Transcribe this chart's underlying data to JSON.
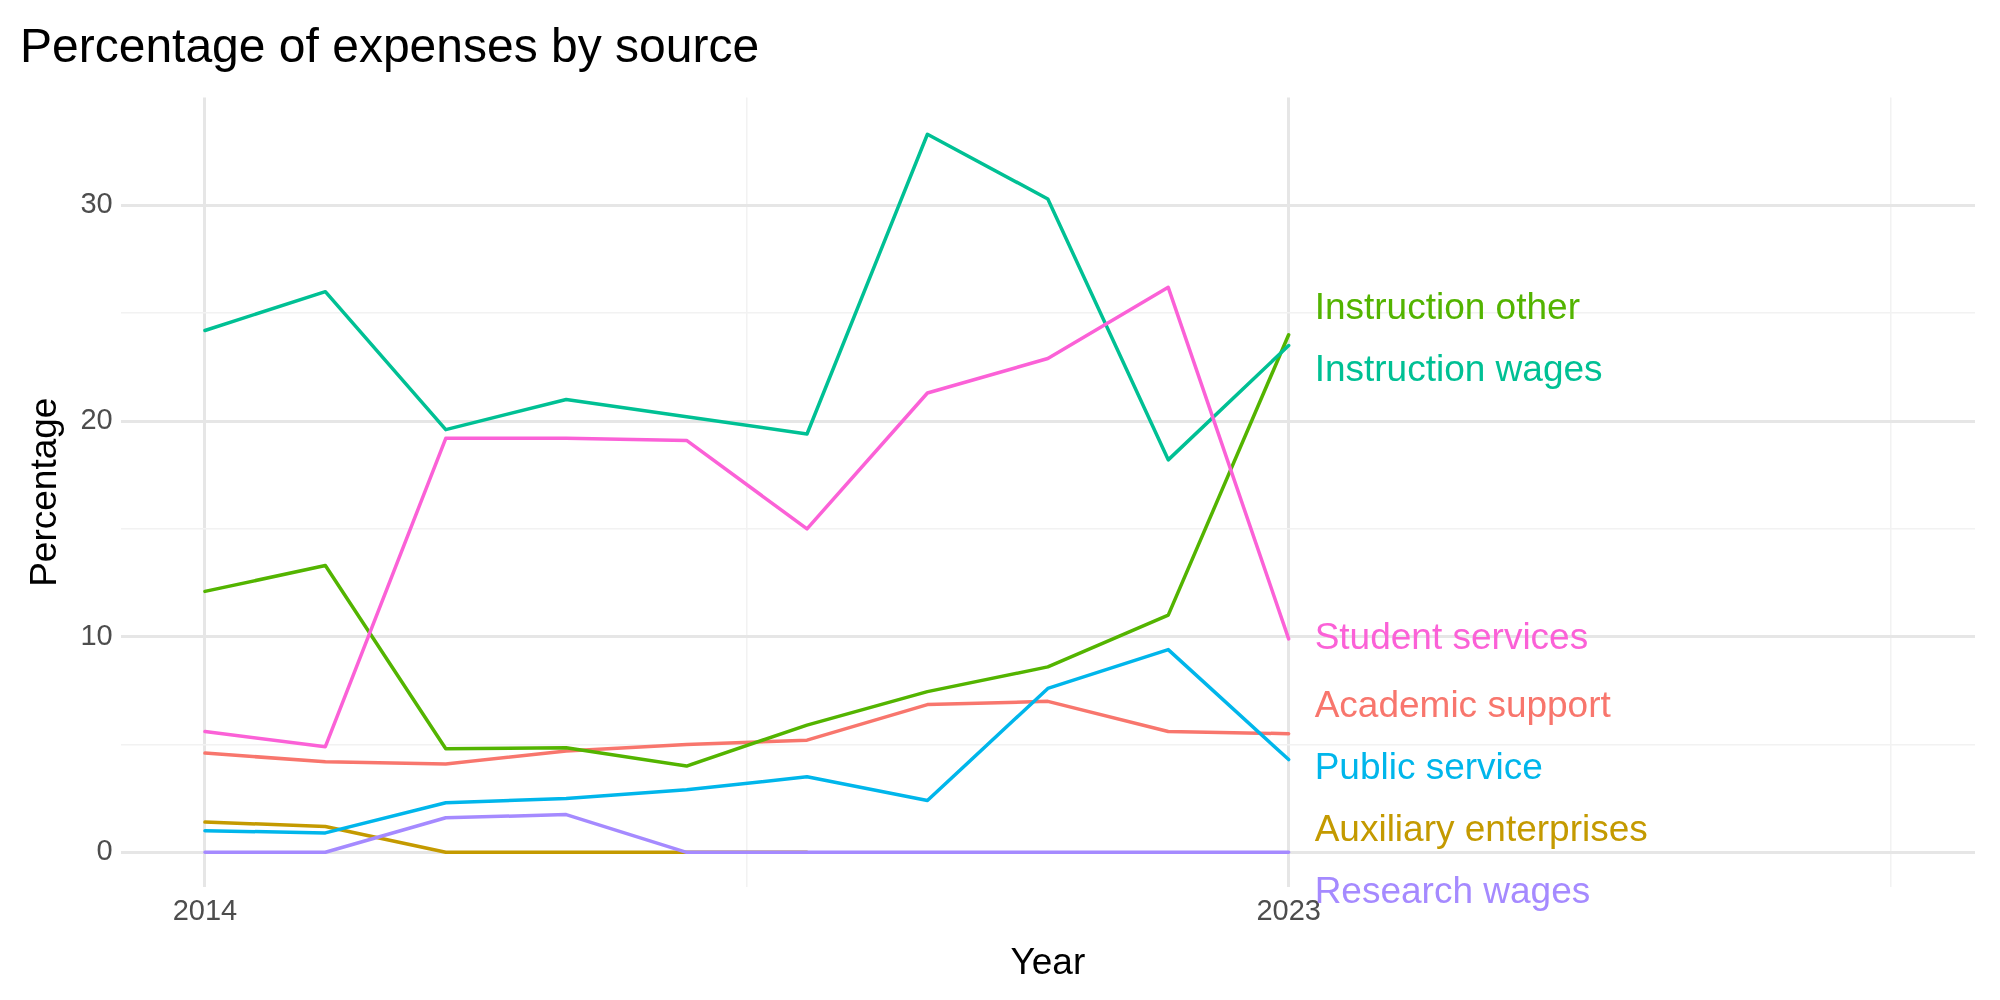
{
  "chart_data": {
    "type": "line",
    "title": "Percentage of expenses by source",
    "xlabel": "Year",
    "ylabel": "Percentage",
    "x": [
      2014,
      2015,
      2016,
      2017,
      2018,
      2019,
      2020,
      2021,
      2022,
      2023
    ],
    "xlim": [
      2013.3,
      2028.7
    ],
    "xticks": [
      2014,
      {
        "value": 2018.5,
        "label": null
      },
      2023,
      {
        "value": 2028,
        "label": null
      }
    ],
    "ylim": [
      -1.6,
      35
    ],
    "yticks": [
      0,
      {
        "value": 5,
        "label": null
      },
      10,
      {
        "value": 15,
        "label": null
      },
      20,
      {
        "value": 25,
        "label": null
      },
      30
    ],
    "grid": true,
    "legend": false,
    "series": [
      {
        "name": "Academic support",
        "color": "#f8766d",
        "values": [
          4.6,
          4.2,
          4.1,
          4.7,
          5.0,
          5.2,
          6.85,
          7.0,
          5.6,
          5.5
        ]
      },
      {
        "name": "Auxiliary enterprises",
        "color": "#c49a00",
        "values": [
          1.4,
          1.2,
          0,
          0,
          0,
          0,
          null,
          null,
          null,
          null
        ]
      },
      {
        "name": "Instruction other",
        "color": "#53b400",
        "values": [
          12.1,
          13.3,
          4.8,
          4.85,
          4.0,
          5.9,
          7.45,
          8.6,
          11.0,
          24.0
        ]
      },
      {
        "name": "Instruction wages",
        "color": "#00c094",
        "values": [
          24.2,
          26.0,
          19.6,
          21.0,
          20.2,
          19.4,
          33.3,
          30.3,
          18.2,
          23.5
        ]
      },
      {
        "name": "Public service",
        "color": "#00b6eb",
        "values": [
          1.0,
          0.9,
          2.3,
          2.5,
          2.9,
          3.5,
          2.4,
          7.6,
          9.4,
          4.3
        ]
      },
      {
        "name": "Research wages",
        "color": "#a58aff",
        "values": [
          0,
          0,
          1.6,
          1.75,
          0,
          0,
          0,
          0,
          0,
          0
        ]
      },
      {
        "name": "Student services",
        "color": "#fb61d7",
        "values": [
          5.6,
          4.9,
          19.2,
          19.2,
          19.1,
          15.0,
          21.3,
          22.9,
          26.2,
          9.9
        ]
      }
    ]
  }
}
